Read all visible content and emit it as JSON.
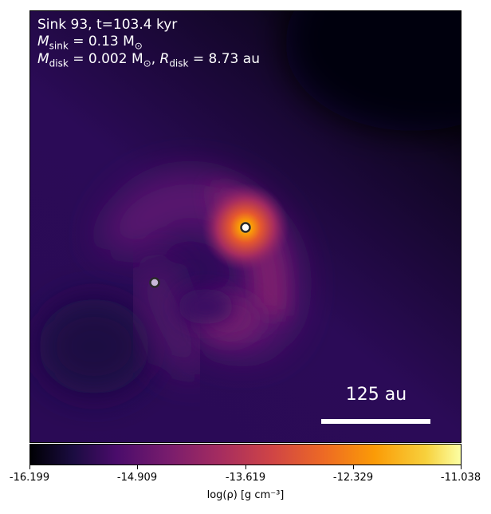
{
  "annotation": {
    "line1": "Sink 93, t=103.4 kyr",
    "mass_symbol": "M",
    "mass_sub": "sink",
    "mass_value": "= 0.13 M",
    "mass_unit_sub": "⊙",
    "disk_mass_symbol": "M",
    "disk_mass_sub": "disk",
    "disk_mass_value": "= 0.002 M",
    "disk_radius_symbol": "R",
    "disk_radius_sub": "disk",
    "disk_radius_value": "= 8.73 au"
  },
  "scale_bar": {
    "label": "125 au"
  },
  "colorbar": {
    "ticks": [
      "-16.199",
      "-14.909",
      "-13.619",
      "-12.329",
      "-11.038"
    ],
    "label": "log(ρ) [g cm⁻³]",
    "colormap": "inferno"
  },
  "sinks": [
    {
      "name": "primary",
      "color": "#ffffff"
    },
    {
      "name": "secondary",
      "color": "#c8b8d8"
    }
  ]
}
